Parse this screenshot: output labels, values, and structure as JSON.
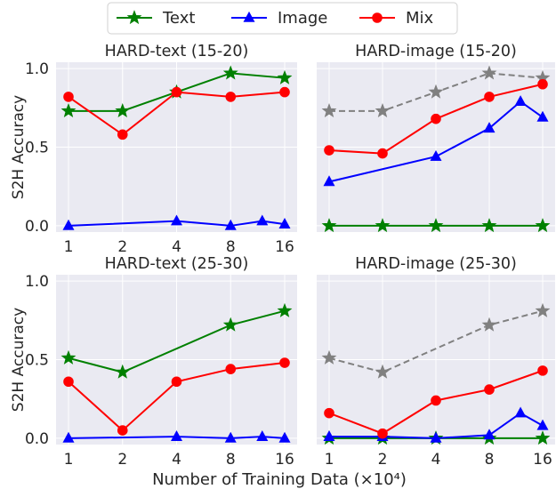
{
  "legend": {
    "placement": "top-center",
    "entries": [
      {
        "label": "Text",
        "color": "#008000",
        "marker": "star"
      },
      {
        "label": "Image",
        "color": "#0000ff",
        "marker": "triangle"
      },
      {
        "label": "Mix",
        "color": "#ff0000",
        "marker": "circle"
      }
    ]
  },
  "colors": {
    "panel_bg": "#eaeaf2",
    "grid": "#ffffff",
    "reference": "#808080"
  },
  "chart_data": [
    {
      "type": "line",
      "title": "HARD-text (15-20)",
      "ylabel": "S2H Accuracy",
      "xlabel": "",
      "x_scale": "log2",
      "xticks": [
        1,
        2,
        4,
        8,
        16
      ],
      "xticklabels": [
        "1",
        "2",
        "4",
        "8",
        "16"
      ],
      "yticks": [
        0.0,
        0.5,
        1.0
      ],
      "yticklabels": [
        "0.0",
        "0.5",
        "1.0"
      ],
      "ylim": [
        -0.04,
        1.04
      ],
      "grid": true,
      "series": [
        {
          "name": "Text",
          "color": "#008000",
          "marker": "star",
          "style": "solid",
          "x": [
            1,
            2,
            4,
            8,
            16
          ],
          "y": [
            0.73,
            0.73,
            0.85,
            0.97,
            0.94
          ]
        },
        {
          "name": "Image",
          "color": "#0000ff",
          "marker": "triangle",
          "style": "solid",
          "x": [
            1,
            4,
            8,
            12,
            16
          ],
          "y": [
            0.0,
            0.03,
            0.0,
            0.03,
            0.01
          ]
        },
        {
          "name": "Mix",
          "color": "#ff0000",
          "marker": "circle",
          "style": "solid",
          "x": [
            1,
            2,
            4,
            8,
            16
          ],
          "y": [
            0.82,
            0.58,
            0.85,
            0.82,
            0.85
          ]
        }
      ]
    },
    {
      "type": "line",
      "title": "HARD-image (15-20)",
      "ylabel": "",
      "xlabel": "",
      "x_scale": "log2",
      "xticks": [
        1,
        2,
        4,
        8,
        16
      ],
      "xticklabels": [],
      "yticks": [
        0.0,
        0.5,
        1.0
      ],
      "yticklabels": [],
      "ylim": [
        -0.04,
        1.04
      ],
      "grid": true,
      "series": [
        {
          "color": "#808080",
          "marker": "star",
          "style": "dashed",
          "x": [
            1,
            2,
            4,
            8,
            16
          ],
          "y": [
            0.73,
            0.73,
            0.85,
            0.97,
            0.94
          ]
        },
        {
          "name": "Text",
          "color": "#008000",
          "marker": "star",
          "style": "solid",
          "x": [
            1,
            2,
            4,
            8,
            16
          ],
          "y": [
            0.0,
            0.0,
            0.0,
            0.0,
            0.0
          ]
        },
        {
          "name": "Image",
          "color": "#0000ff",
          "marker": "triangle",
          "style": "solid",
          "x": [
            1,
            4,
            8,
            12,
            16
          ],
          "y": [
            0.28,
            0.44,
            0.62,
            0.79,
            0.69
          ]
        },
        {
          "name": "Mix",
          "color": "#ff0000",
          "marker": "circle",
          "style": "solid",
          "x": [
            1,
            2,
            4,
            8,
            16
          ],
          "y": [
            0.48,
            0.46,
            0.68,
            0.82,
            0.9
          ]
        }
      ]
    },
    {
      "type": "line",
      "title": "HARD-text (25-30)",
      "ylabel": "S2H Accuracy",
      "xlabel": "",
      "x_scale": "log2",
      "xticks": [
        1,
        2,
        4,
        8,
        16
      ],
      "xticklabels": [
        "1",
        "2",
        "4",
        "8",
        "16"
      ],
      "yticks": [
        0.0,
        0.5,
        1.0
      ],
      "yticklabels": [
        "0.0",
        "0.5",
        "1.0"
      ],
      "ylim": [
        -0.04,
        1.04
      ],
      "grid": true,
      "series": [
        {
          "name": "Text",
          "color": "#008000",
          "marker": "star",
          "style": "solid",
          "x": [
            1,
            2,
            8,
            16
          ],
          "y": [
            0.51,
            0.42,
            0.72,
            0.81
          ]
        },
        {
          "name": "Image",
          "color": "#0000ff",
          "marker": "triangle",
          "style": "solid",
          "x": [
            1,
            4,
            8,
            12,
            16
          ],
          "y": [
            0.0,
            0.01,
            0.0,
            0.01,
            0.0
          ]
        },
        {
          "name": "Mix",
          "color": "#ff0000",
          "marker": "circle",
          "style": "solid",
          "x": [
            1,
            2,
            4,
            8,
            16
          ],
          "y": [
            0.36,
            0.05,
            0.36,
            0.44,
            0.48
          ]
        }
      ]
    },
    {
      "type": "line",
      "title": "HARD-image (25-30)",
      "ylabel": "",
      "xlabel": "",
      "x_scale": "log2",
      "xticks": [
        1,
        2,
        4,
        8,
        16
      ],
      "xticklabels": [
        "1",
        "2",
        "4",
        "8",
        "16"
      ],
      "yticks": [
        0.0,
        0.5,
        1.0
      ],
      "yticklabels": [],
      "ylim": [
        -0.04,
        1.04
      ],
      "grid": true,
      "series": [
        {
          "color": "#808080",
          "marker": "star",
          "style": "dashed",
          "x": [
            1,
            2,
            8,
            16
          ],
          "y": [
            0.51,
            0.42,
            0.72,
            0.81
          ]
        },
        {
          "name": "Text",
          "color": "#008000",
          "marker": "star",
          "style": "solid",
          "x": [
            1,
            2,
            4,
            8,
            16
          ],
          "y": [
            0.0,
            0.0,
            0.0,
            0.0,
            0.0
          ]
        },
        {
          "name": "Image",
          "color": "#0000ff",
          "marker": "triangle",
          "style": "solid",
          "x": [
            1,
            2,
            4,
            8,
            12,
            16
          ],
          "y": [
            0.01,
            0.01,
            0.0,
            0.02,
            0.16,
            0.08
          ]
        },
        {
          "name": "Mix",
          "color": "#ff0000",
          "marker": "circle",
          "style": "solid",
          "x": [
            1,
            2,
            4,
            8,
            16
          ],
          "y": [
            0.16,
            0.03,
            0.24,
            0.31,
            0.43
          ]
        }
      ]
    }
  ],
  "shared_xlabel": "Number of Training Data (×10⁴)"
}
